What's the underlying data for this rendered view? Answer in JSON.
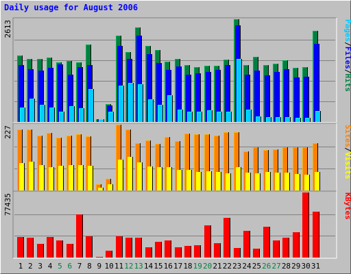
{
  "title": "Daily usage for August 2006",
  "colors": {
    "pages": "#00ccff",
    "files": "#0000ff",
    "hits": "#008040",
    "sites": "#ff8000",
    "visits": "#ffff00",
    "kbytes": "#ff0000",
    "panel_bg": "#c0c0c0",
    "grid": "#808080"
  },
  "legends": {
    "top": [
      "Pages",
      "/",
      "Files",
      "/",
      "Hits"
    ],
    "middle": [
      "Sites",
      "/",
      "Visits"
    ],
    "bottom": [
      "KBytes"
    ]
  },
  "weekend_days": [
    5,
    6,
    12,
    13,
    19,
    20,
    26,
    27
  ],
  "chart_data": [
    {
      "type": "bar",
      "panel": "top",
      "ymax_label": "2613",
      "ylim": [
        0,
        2613
      ],
      "categories": [
        "1",
        "2",
        "3",
        "4",
        "5",
        "6",
        "7",
        "8",
        "9",
        "10",
        "11",
        "12",
        "13",
        "14",
        "15",
        "16",
        "17",
        "18",
        "19",
        "20",
        "21",
        "22",
        "23",
        "24",
        "25",
        "26",
        "27",
        "28",
        "29",
        "30",
        "31"
      ],
      "series": [
        {
          "name": "Hits",
          "values": [
            1685,
            1610,
            1610,
            1640,
            1520,
            1550,
            1520,
            1960,
            65,
            455,
            2200,
            1780,
            2400,
            1930,
            1830,
            1530,
            1610,
            1450,
            1400,
            1420,
            1420,
            1580,
            2613,
            1450,
            1650,
            1450,
            1480,
            1560,
            1370,
            1400,
            2320
          ]
        },
        {
          "name": "Files",
          "values": [
            1450,
            1340,
            1300,
            1370,
            1460,
            1200,
            1400,
            1450,
            65,
            425,
            1940,
            1600,
            2200,
            1730,
            1500,
            1320,
            1410,
            1210,
            1240,
            1270,
            1320,
            1450,
            2450,
            1210,
            1300,
            1190,
            1270,
            1350,
            1130,
            1150,
            1990
          ]
        },
        {
          "name": "Pages",
          "values": [
            370,
            600,
            440,
            360,
            260,
            400,
            340,
            830,
            65,
            270,
            930,
            1000,
            960,
            580,
            430,
            680,
            320,
            265,
            270,
            290,
            255,
            255,
            1600,
            320,
            140,
            120,
            120,
            130,
            110,
            100,
            280
          ]
        }
      ]
    },
    {
      "type": "bar",
      "panel": "middle",
      "ymax_label": "227",
      "ylim": [
        0,
        227
      ],
      "categories": [
        "1",
        "2",
        "3",
        "4",
        "5",
        "6",
        "7",
        "8",
        "9",
        "10",
        "11",
        "12",
        "13",
        "14",
        "15",
        "16",
        "17",
        "18",
        "19",
        "20",
        "21",
        "22",
        "23",
        "24",
        "25",
        "26",
        "27",
        "28",
        "29",
        "30",
        "31"
      ],
      "series": [
        {
          "name": "Sites",
          "values": [
            210,
            210,
            188,
            198,
            183,
            190,
            193,
            186,
            22,
            40,
            227,
            210,
            163,
            172,
            160,
            185,
            170,
            196,
            193,
            195,
            188,
            200,
            200,
            135,
            150,
            140,
            143,
            150,
            148,
            150,
            162
          ]
        },
        {
          "name": "Visits",
          "values": [
            95,
            100,
            88,
            80,
            85,
            87,
            87,
            85,
            10,
            22,
            107,
            117,
            97,
            83,
            80,
            81,
            72,
            70,
            65,
            66,
            65,
            60,
            80,
            62,
            60,
            63,
            62,
            62,
            57,
            55,
            65
          ]
        }
      ]
    },
    {
      "type": "bar",
      "panel": "bottom",
      "ymax_label": "77435",
      "ylim": [
        0,
        77435
      ],
      "categories": [
        "1",
        "2",
        "3",
        "4",
        "5",
        "6",
        "7",
        "8",
        "9",
        "10",
        "11",
        "12",
        "13",
        "14",
        "15",
        "16",
        "17",
        "18",
        "19",
        "20",
        "21",
        "22",
        "23",
        "24",
        "25",
        "26",
        "27",
        "28",
        "29",
        "30",
        "31"
      ],
      "series": [
        {
          "name": "KBytes",
          "values": [
            24500,
            24000,
            16000,
            24500,
            20500,
            16000,
            51000,
            25000,
            900,
            8000,
            25000,
            23500,
            23500,
            12500,
            19000,
            20500,
            12000,
            13500,
            14500,
            38000,
            17500,
            47500,
            11500,
            31500,
            10500,
            37000,
            20500,
            24000,
            30000,
            77435,
            55000
          ]
        }
      ]
    }
  ]
}
